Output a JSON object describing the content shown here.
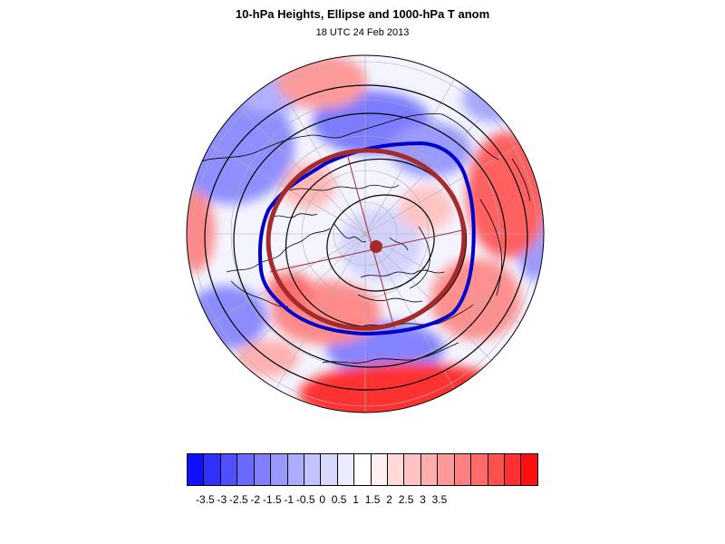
{
  "title": "10-hPa Heights, Ellipse and 1000-hPa T anom",
  "subtitle": "18 UTC 24 Feb 2013",
  "map": {
    "projection": "north polar stereographic",
    "shading": "1000-hPa temperature anomaly",
    "height_contour_color": "#000000",
    "polar_vortex_edge_color": "#0000cc",
    "fitted_ellipse_color": "#a52a2a",
    "ellipse_center_marker_color": "#a52a2a"
  },
  "colorbar": {
    "colors": [
      "#1010ff",
      "#3030ff",
      "#5050ff",
      "#6a6aff",
      "#8080ff",
      "#9898ff",
      "#adadff",
      "#c2c2ff",
      "#d8d8ff",
      "#ececff",
      "#ffffff",
      "#fff0f0",
      "#ffd8d8",
      "#ffc2c2",
      "#ffadad",
      "#ff9898",
      "#ff8080",
      "#ff6a6a",
      "#ff5050",
      "#ff3030",
      "#ff1010"
    ],
    "tick_labels": [
      "-3.5",
      "-3",
      "-2.5",
      "-2",
      "-1.5",
      "-1",
      "-0.5",
      "0",
      "0.5",
      "1",
      "1.5",
      "2",
      "2.5",
      "3",
      "3.5"
    ]
  }
}
